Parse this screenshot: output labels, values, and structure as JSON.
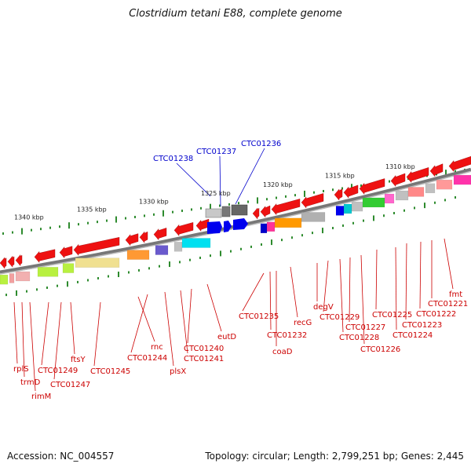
{
  "title": "Clostridium tetani E88, complete genome",
  "accession": "Accession: NC_004557",
  "topology": "Topology: circular; Length: 2,799,251 bp; Genes: 2,445",
  "colors": {
    "backbone": "#888888",
    "tick": "#2e8b2e",
    "forward_label": "#0000cc",
    "reverse_label": "#cc0000",
    "leader": "#cc0000",
    "forward_leader": "#0000cc"
  },
  "position_labels": [
    "1340 kbp",
    "1335 kbp",
    "1330 kbp",
    "1325 kbp",
    "1320 kbp",
    "1315 kbp",
    "1310 kbp"
  ],
  "forward_genes": [
    "CTC01238",
    "CTC01237",
    "CTC01236"
  ],
  "reverse_genes": [
    "rplS",
    "trmD",
    "rimM",
    "CTC01249",
    "CTC01247",
    "ftsY",
    "CTC01245",
    "rnc",
    "CTC01244",
    "plsX",
    "CTC01241",
    "CTC01240",
    "eutD",
    "CTC01235",
    "CTC01232",
    "coaD",
    "recG",
    "degV",
    "CTC01229",
    "CTC01228",
    "CTC01227",
    "CTC01226",
    "CTC01225",
    "CTC01224",
    "CTC01223",
    "CTC01222",
    "CTC01221",
    "fmt"
  ]
}
